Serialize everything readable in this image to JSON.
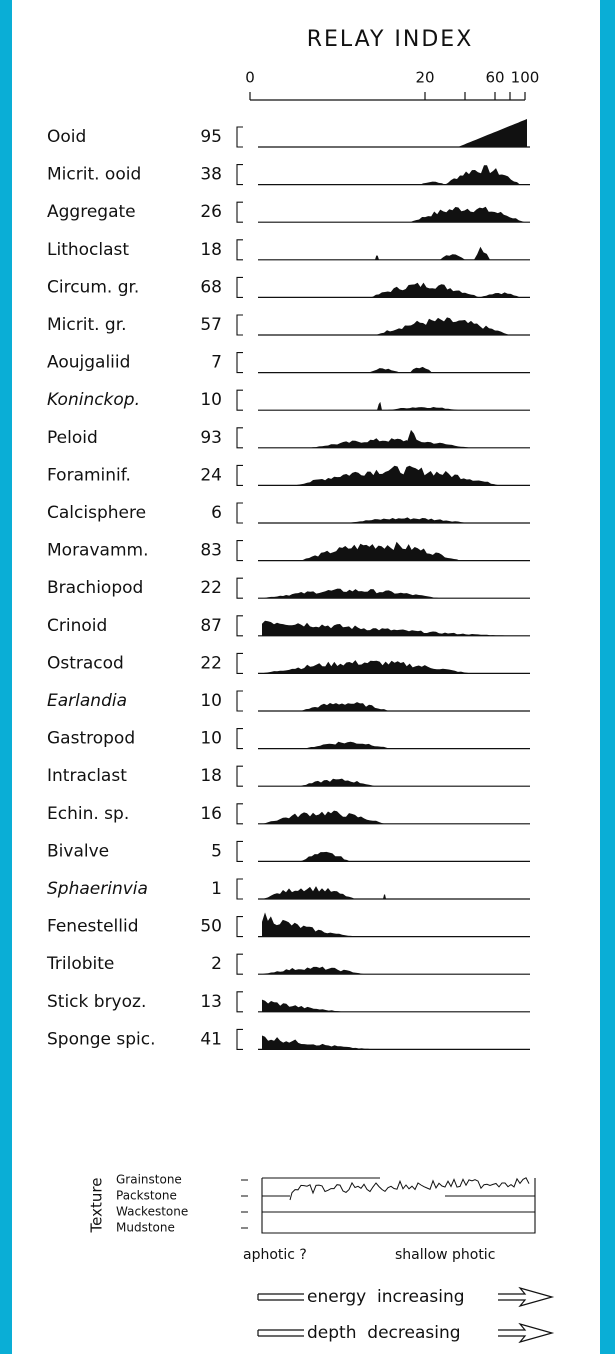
{
  "figure": {
    "title": "RELAY INDEX",
    "scale_ticks": [
      "0",
      "20",
      "60",
      "100"
    ],
    "rows": [
      {
        "name": "Ooid",
        "count": "95"
      },
      {
        "name": "Micrit. ooid",
        "count": "38"
      },
      {
        "name": "Aggregate",
        "count": "26"
      },
      {
        "name": "Lithoclast",
        "count": "18"
      },
      {
        "name": "Circum. gr.",
        "count": "68"
      },
      {
        "name": "Micrit. gr.",
        "count": "57"
      },
      {
        "name": "Aoujgaliid",
        "count": "7"
      },
      {
        "name": "Koninckop.",
        "count": "10",
        "italic": true
      },
      {
        "name": "Peloid",
        "count": "93"
      },
      {
        "name": "Foraminif.",
        "count": "24"
      },
      {
        "name": "Calcisphere",
        "count": "6"
      },
      {
        "name": "Moravamm.",
        "count": "83"
      },
      {
        "name": "Brachiopod",
        "count": "22"
      },
      {
        "name": "Crinoid",
        "count": "87"
      },
      {
        "name": "Ostracod",
        "count": "22"
      },
      {
        "name": "Earlandia",
        "count": "10",
        "italic": true
      },
      {
        "name": "Gastropod",
        "count": "10"
      },
      {
        "name": "Intraclast",
        "count": "18"
      },
      {
        "name": "Echin. sp.",
        "count": "16"
      },
      {
        "name": "Bivalve",
        "count": "5"
      },
      {
        "name": "Sphaerinvia",
        "count": "1",
        "italic": true
      },
      {
        "name": "Fenestellid",
        "count": "50"
      },
      {
        "name": "Trilobite",
        "count": "2"
      },
      {
        "name": "Stick bryoz.",
        "count": "13"
      },
      {
        "name": "Sponge spic.",
        "count": "41"
      }
    ],
    "texture": {
      "label": "Texture",
      "classes": [
        "Grainstone",
        "Packstone",
        "Wackestone",
        "Mudstone"
      ]
    },
    "zones": [
      "aphotic ?",
      "shallow photic"
    ],
    "arrows": [
      "energy  increasing",
      "depth  decreasing"
    ]
  }
}
